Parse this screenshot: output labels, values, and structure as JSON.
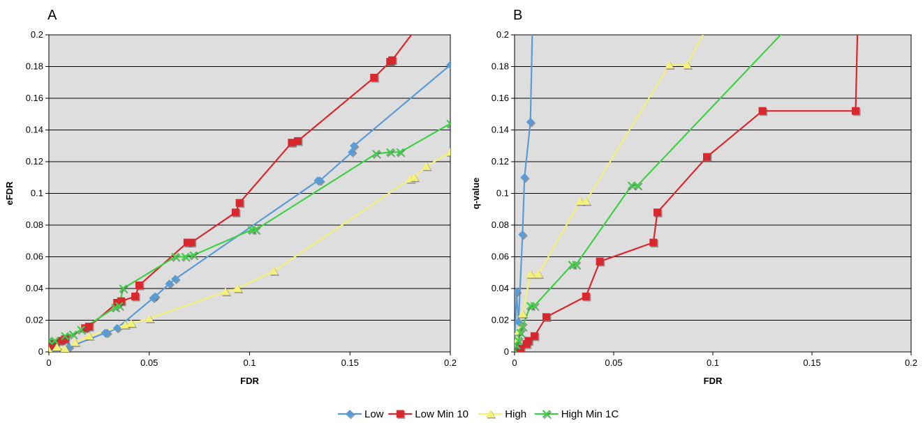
{
  "legend": [
    {
      "name": "Low",
      "color": "#5b9bd5",
      "marker": "diamond"
    },
    {
      "name": "Low Min 10",
      "color": "#d9272e",
      "marker": "square"
    },
    {
      "name": "High",
      "color": "#f5f07a",
      "marker": "triangle"
    },
    {
      "name": "High Min 1C",
      "color": "#3fcf47",
      "marker": "x"
    }
  ],
  "chart_data": [
    {
      "type": "line",
      "panel_label": "A",
      "xlabel": "FDR",
      "ylabel": "eFDR",
      "xlim": [
        0,
        0.2
      ],
      "ylim": [
        0,
        0.2
      ],
      "xticks": [
        "0",
        "0.05",
        "0.1",
        "0.15",
        "0.2"
      ],
      "xtick_values": [
        0,
        0.05,
        0.1,
        0.15,
        0.2
      ],
      "yticks": [
        "0",
        "0.02",
        "0.04",
        "0.06",
        "0.08",
        "0.1",
        "0.12",
        "0.14",
        "0.16",
        "0.18",
        "0.2"
      ],
      "ytick_values": [
        0,
        0.02,
        0.04,
        0.06,
        0.08,
        0.1,
        0.12,
        0.14,
        0.16,
        0.18,
        0.2
      ],
      "grid": "horizontal",
      "legend_position": "bottom",
      "series": [
        {
          "name": "Low",
          "color": "#5b9bd5",
          "marker": "diamond",
          "points": [
            [
              0,
              0.003
            ],
            [
              0.002,
              0.003
            ],
            [
              0.004,
              0.001
            ],
            [
              0.01,
              0.003
            ],
            [
              0.028,
              0.012
            ],
            [
              0.029,
              0.012
            ],
            [
              0.034,
              0.015
            ],
            [
              0.052,
              0.034
            ],
            [
              0.053,
              0.035
            ],
            [
              0.06,
              0.043
            ],
            [
              0.063,
              0.046
            ],
            [
              0.134,
              0.108
            ],
            [
              0.135,
              0.108
            ],
            [
              0.151,
              0.126
            ],
            [
              0.152,
              0.13
            ],
            [
              0.2,
              0.181
            ]
          ]
        },
        {
          "name": "Low Min 10",
          "color": "#d9272e",
          "marker": "square",
          "points": [
            [
              0,
              0.004
            ],
            [
              0.003,
              0.005
            ],
            [
              0.006,
              0.007
            ],
            [
              0.008,
              0.008
            ],
            [
              0.018,
              0.015
            ],
            [
              0.02,
              0.016
            ],
            [
              0.034,
              0.031
            ],
            [
              0.036,
              0.032
            ],
            [
              0.043,
              0.035
            ],
            [
              0.045,
              0.042
            ],
            [
              0.069,
              0.069
            ],
            [
              0.071,
              0.069
            ],
            [
              0.093,
              0.088
            ],
            [
              0.095,
              0.094
            ],
            [
              0.121,
              0.132
            ],
            [
              0.124,
              0.133
            ],
            [
              0.162,
              0.173
            ],
            [
              0.17,
              0.183
            ],
            [
              0.171,
              0.184
            ],
            [
              0.183,
              0.204
            ]
          ]
        },
        {
          "name": "High",
          "color": "#f5f07a",
          "marker": "triangle",
          "points": [
            [
              0,
              0.001
            ],
            [
              0.004,
              0.003
            ],
            [
              0.008,
              0.002
            ],
            [
              0.013,
              0.006
            ],
            [
              0.02,
              0.01
            ],
            [
              0.038,
              0.017
            ],
            [
              0.041,
              0.018
            ],
            [
              0.05,
              0.021
            ],
            [
              0.088,
              0.038
            ],
            [
              0.094,
              0.04
            ],
            [
              0.112,
              0.051
            ],
            [
              0.18,
              0.109
            ],
            [
              0.182,
              0.11
            ],
            [
              0.188,
              0.117
            ],
            [
              0.2,
              0.126
            ]
          ]
        },
        {
          "name": "High Min 1C",
          "color": "#3fcf47",
          "marker": "x",
          "points": [
            [
              0,
              0.007
            ],
            [
              0.003,
              0.007
            ],
            [
              0.008,
              0.01
            ],
            [
              0.012,
              0.011
            ],
            [
              0.016,
              0.014
            ],
            [
              0.033,
              0.028
            ],
            [
              0.035,
              0.029
            ],
            [
              0.037,
              0.04
            ],
            [
              0.063,
              0.06
            ],
            [
              0.068,
              0.06
            ],
            [
              0.072,
              0.061
            ],
            [
              0.101,
              0.077
            ],
            [
              0.103,
              0.077
            ],
            [
              0.163,
              0.125
            ],
            [
              0.17,
              0.126
            ],
            [
              0.175,
              0.126
            ],
            [
              0.2,
              0.144
            ]
          ]
        }
      ]
    },
    {
      "type": "line",
      "panel_label": "B",
      "xlabel": "FDR",
      "ylabel": "q-value",
      "xlim": [
        0,
        0.2
      ],
      "ylim": [
        0,
        0.2
      ],
      "xticks": [
        "0",
        "0.05",
        "0.1",
        "0.15",
        "0.2"
      ],
      "xtick_values": [
        0,
        0.05,
        0.1,
        0.15,
        0.2
      ],
      "yticks": [
        "0",
        "0.02",
        "0.04",
        "0.06",
        "0.08",
        "0.1",
        "0.12",
        "0.14",
        "0.16",
        "0.18",
        "0.2"
      ],
      "ytick_values": [
        0,
        0.02,
        0.04,
        0.06,
        0.08,
        0.1,
        0.12,
        0.14,
        0.16,
        0.18,
        0.2
      ],
      "grid": "horizontal",
      "legend_position": "bottom",
      "series": [
        {
          "name": "Low",
          "color": "#5b9bd5",
          "marker": "diamond",
          "points": [
            [
              0,
              0.002
            ],
            [
              0.001,
              0.038
            ],
            [
              0.002,
              0.019
            ],
            [
              0.004,
              0.074
            ],
            [
              0.005,
              0.11
            ],
            [
              0.008,
              0.145
            ],
            [
              0.009,
              0.205
            ]
          ]
        },
        {
          "name": "Low Min 10",
          "color": "#d9272e",
          "marker": "square",
          "points": [
            [
              0,
              0.001
            ],
            [
              0.003,
              0.002
            ],
            [
              0.006,
              0.005
            ],
            [
              0.007,
              0.007
            ],
            [
              0.01,
              0.01
            ],
            [
              0.016,
              0.022
            ],
            [
              0.036,
              0.035
            ],
            [
              0.043,
              0.057
            ],
            [
              0.07,
              0.069
            ],
            [
              0.072,
              0.088
            ],
            [
              0.097,
              0.123
            ],
            [
              0.125,
              0.152
            ],
            [
              0.172,
              0.152
            ],
            [
              0.173,
              0.205
            ]
          ]
        },
        {
          "name": "High",
          "color": "#f5f07a",
          "marker": "triangle",
          "points": [
            [
              0,
              0.005
            ],
            [
              0.002,
              0.013
            ],
            [
              0.004,
              0.024
            ],
            [
              0.008,
              0.049
            ],
            [
              0.012,
              0.049
            ],
            [
              0.033,
              0.095
            ],
            [
              0.036,
              0.095
            ],
            [
              0.078,
              0.181
            ],
            [
              0.087,
              0.181
            ],
            [
              0.097,
              0.205
            ]
          ]
        },
        {
          "name": "High Min 1C",
          "color": "#3fcf47",
          "marker": "x",
          "points": [
            [
              0,
              0.001
            ],
            [
              0.001,
              0.004
            ],
            [
              0.002,
              0.007
            ],
            [
              0.003,
              0.012
            ],
            [
              0.004,
              0.016
            ],
            [
              0.008,
              0.029
            ],
            [
              0.01,
              0.029
            ],
            [
              0.029,
              0.055
            ],
            [
              0.031,
              0.055
            ],
            [
              0.059,
              0.105
            ],
            [
              0.062,
              0.105
            ],
            [
              0.138,
              0.205
            ],
            [
              0.165,
              0.205
            ]
          ]
        }
      ]
    }
  ]
}
